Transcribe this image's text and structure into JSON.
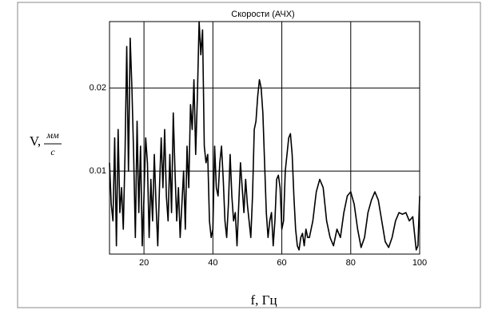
{
  "chart_data": {
    "type": "line",
    "title": "Скорости (АЧХ)",
    "xlabel": "f, Гц",
    "ylabel": {
      "prefix": "V,",
      "numerator": "мм",
      "denominator": "с"
    },
    "color": "#000000",
    "grid": true,
    "xlim": [
      10,
      100
    ],
    "ylim": [
      0,
      0.028
    ],
    "xticks": [
      20,
      40,
      60,
      80,
      100
    ],
    "yticks": [
      0.01,
      0.02
    ],
    "x": [
      10,
      10.5,
      11,
      11.5,
      12,
      12.5,
      13,
      13.5,
      14,
      14.5,
      15,
      15.5,
      16,
      16.5,
      17,
      17.5,
      18,
      18.5,
      19,
      19.5,
      20,
      20.5,
      21,
      21.5,
      22,
      22.5,
      23,
      23.5,
      24,
      24.5,
      25,
      25.5,
      26,
      26.5,
      27,
      27.5,
      28,
      28.5,
      29,
      29.5,
      30,
      30.5,
      31,
      31.5,
      32,
      32.5,
      33,
      33.5,
      34,
      34.5,
      35,
      35.5,
      36,
      36.5,
      37,
      37.5,
      38,
      38.5,
      39,
      39.5,
      40,
      40.5,
      41,
      41.5,
      42,
      42.5,
      43,
      43.5,
      44,
      44.5,
      45,
      45.5,
      46,
      46.5,
      47,
      47.5,
      48,
      48.5,
      49,
      49.5,
      50,
      50.5,
      51,
      51.5,
      52,
      52.5,
      53,
      53.5,
      54,
      54.5,
      55,
      55.5,
      56,
      56.5,
      57,
      57.5,
      58,
      58.5,
      59,
      59.5,
      60,
      60.5,
      61,
      61.5,
      62,
      62.5,
      63,
      63.5,
      64,
      64.5,
      65,
      65.5,
      66,
      66.5,
      67,
      67.5,
      68,
      69,
      70,
      71,
      72,
      73,
      74,
      75,
      76,
      77,
      78,
      79,
      80,
      81,
      82,
      83,
      84,
      85,
      86,
      87,
      88,
      89,
      90,
      91,
      92,
      93,
      94,
      95,
      96,
      97,
      98,
      99,
      99.5,
      100
    ],
    "values": [
      0.011,
      0.006,
      0.004,
      0.014,
      0.001,
      0.015,
      0.005,
      0.008,
      0.003,
      0.012,
      0.025,
      0.01,
      0.026,
      0.02,
      0.012,
      0.002,
      0.016,
      0.005,
      0.013,
      0.001,
      0.007,
      0.014,
      0.011,
      0.002,
      0.009,
      0.004,
      0.012,
      0.006,
      0.001,
      0.008,
      0.014,
      0.008,
      0.015,
      0.007,
      0.004,
      0.012,
      0.005,
      0.017,
      0.01,
      0.004,
      0.008,
      0.002,
      0.006,
      0.01,
      0.003,
      0.013,
      0.008,
      0.018,
      0.015,
      0.021,
      0.012,
      0.019,
      0.028,
      0.024,
      0.027,
      0.013,
      0.011,
      0.012,
      0.004,
      0.002,
      0.003,
      0.013,
      0.008,
      0.007,
      0.011,
      0.013,
      0.009,
      0.004,
      0.002,
      0.006,
      0.012,
      0.007,
      0.004,
      0.005,
      0.001,
      0.006,
      0.011,
      0.008,
      0.005,
      0.009,
      0.006,
      0.004,
      0.002,
      0.007,
      0.015,
      0.016,
      0.019,
      0.021,
      0.02,
      0.017,
      0.011,
      0.005,
      0.002,
      0.004,
      0.005,
      0.001,
      0.004,
      0.009,
      0.0095,
      0.008,
      0.003,
      0.004,
      0.01,
      0.012,
      0.014,
      0.0145,
      0.012,
      0.007,
      0.003,
      0.001,
      0.0005,
      0.002,
      0.0025,
      0.001,
      0.003,
      0.002,
      0.002,
      0.004,
      0.0075,
      0.009,
      0.008,
      0.004,
      0.002,
      0.001,
      0.003,
      0.002,
      0.005,
      0.007,
      0.0075,
      0.006,
      0.003,
      0.0008,
      0.002,
      0.005,
      0.0065,
      0.0075,
      0.0065,
      0.004,
      0.0015,
      0.0008,
      0.002,
      0.004,
      0.005,
      0.0048,
      0.005,
      0.004,
      0.0045,
      0.0005,
      0.001,
      0.007
    ]
  }
}
